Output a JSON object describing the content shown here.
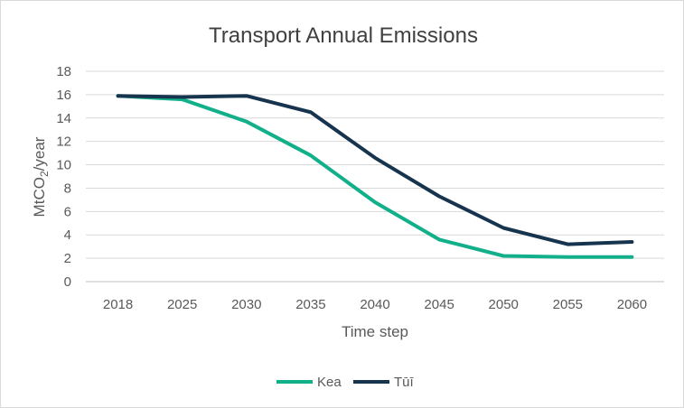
{
  "chart_data": {
    "type": "line",
    "title": "Transport Annual Emissions",
    "xlabel": "Time step",
    "ylabel": {
      "prefix": "MtCO",
      "subscript": "2",
      "suffix": "/year"
    },
    "categories": [
      "2018",
      "2025",
      "2030",
      "2035",
      "2040",
      "2045",
      "2050",
      "2055",
      "2060"
    ],
    "y_ticks": [
      "0",
      "2",
      "4",
      "6",
      "8",
      "10",
      "12",
      "14",
      "16",
      "18"
    ],
    "ylim": [
      0,
      18
    ],
    "grid": true,
    "legend_position": "bottom",
    "series": [
      {
        "name": "Kea",
        "color": "#12b08a",
        "values": [
          15.9,
          15.6,
          13.7,
          10.8,
          6.8,
          3.6,
          2.2,
          2.1,
          2.1
        ]
      },
      {
        "name": "Tūī",
        "color": "#17344f",
        "values": [
          15.9,
          15.8,
          15.9,
          14.5,
          10.6,
          7.3,
          4.6,
          3.2,
          3.4
        ]
      }
    ]
  }
}
